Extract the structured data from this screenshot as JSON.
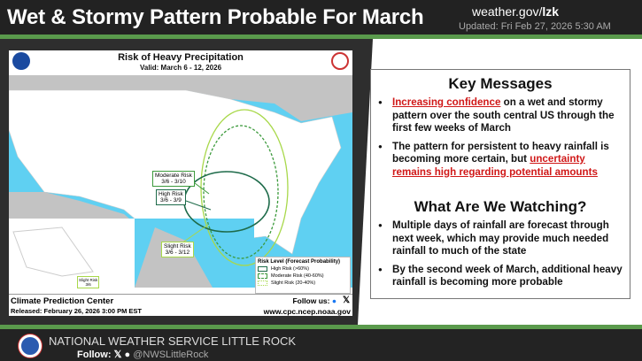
{
  "header": {
    "title": "Wet & Stormy Pattern Probable For March",
    "site_prefix": "weather.gov/",
    "site_office": "lzk",
    "updated": "Updated: Fri Feb 27, 2026 5:30 AM"
  },
  "map": {
    "title": "Risk of Heavy Precipitation",
    "valid": "Valid: March 6 - 12, 2026",
    "labels": {
      "moderate": "Moderate Risk",
      "moderate_dates": "3/6 - 3/10",
      "high": "High Risk",
      "high_dates": "3/6 - 3/9",
      "slight": "Slight Risk",
      "slight_dates": "3/6 - 3/12",
      "ak_slight": "Slight Risk",
      "ak_dates": "3/6"
    },
    "legend": {
      "title": "Risk Level (Forecast Probability)",
      "items": [
        {
          "label": "High Risk (>60%)",
          "color": "#1e6b4a"
        },
        {
          "label": "Moderate Risk (40-60%)",
          "color": "#3c9a3c"
        },
        {
          "label": "Slight Risk (20-40%)",
          "color": "#a8d84a"
        }
      ]
    },
    "footer": {
      "center": "Climate Prediction Center",
      "released": "Released: February 26, 2026 3:00 PM EST",
      "follow": "Follow us:",
      "url": "www.cpc.ncep.noaa.gov"
    }
  },
  "key_messages": {
    "title": "Key Messages",
    "items": [
      {
        "red": "Increasing confidence",
        "text": " on a wet and stormy pattern over the south central US through the first few weeks of March"
      },
      {
        "text": "The pattern for persistent to heavy rainfall is becoming more certain, but ",
        "red": "uncertainty remains high regarding potential amounts"
      }
    ]
  },
  "watching": {
    "title": "What Are We Watching?",
    "items": [
      "Multiple days of rainfall are forecast through next week, which may provide much needed rainfall to much of the state",
      "By the second week of March, additional heavy rainfall is becoming more probable"
    ]
  },
  "footer": {
    "office": "NATIONAL WEATHER SERVICE LITTLE ROCK",
    "follow": "Follow:",
    "handle": "@NWSLittleRock"
  }
}
